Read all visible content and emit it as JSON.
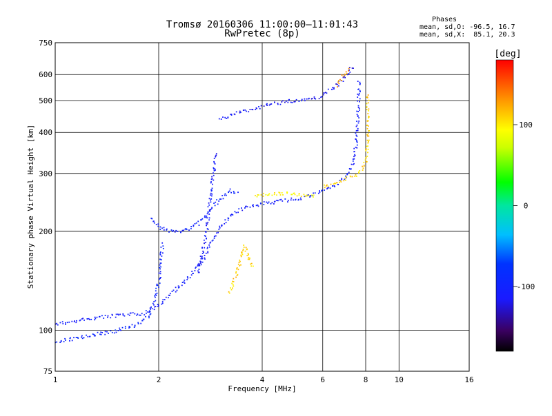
{
  "chart_data": {
    "type": "scatter",
    "title": "Tromsø 20160306 11:00:00–11:01:43",
    "subtitle": "RwPretec (8p)",
    "xlabel": "Frequency [MHz]",
    "ylabel": "Stationary phase Virtual Height [km]",
    "x_scale": "log",
    "y_scale": "log",
    "xlim": [
      1,
      16
    ],
    "ylim": [
      75,
      750
    ],
    "x_ticks": [
      1,
      2,
      4,
      6,
      8,
      10,
      16
    ],
    "x_tick_labels": [
      "1",
      "2",
      "4",
      "6",
      "8",
      "10",
      "16"
    ],
    "y_ticks": [
      75,
      100,
      200,
      300,
      400,
      500,
      600,
      750
    ],
    "y_tick_labels": [
      "75",
      "100",
      "200",
      "300",
      "400",
      "500",
      "600",
      "750"
    ],
    "grid": true,
    "phases_box": {
      "title": "Phases",
      "line1": "mean, sd,O: -96.5, 16.7",
      "line2": "mean, sd,X:  85.1, 20.3"
    },
    "colorbar": {
      "label": "[deg]",
      "range": [
        -180,
        180
      ],
      "ticks": [
        100,
        0,
        -100
      ],
      "tick_labels": [
        "100",
        "0",
        "-100"
      ]
    },
    "traces": [
      {
        "points": [
          [
            1.0,
            105
          ],
          [
            1.1,
            106
          ],
          [
            1.2,
            108
          ],
          [
            1.35,
            110
          ],
          [
            1.5,
            111
          ],
          [
            1.65,
            112
          ],
          [
            1.8,
            113
          ],
          [
            1.9,
            116
          ],
          [
            2.0,
            120
          ],
          [
            2.1,
            125
          ],
          [
            2.2,
            132
          ],
          [
            2.35,
            140
          ],
          [
            2.5,
            150
          ],
          [
            2.65,
            162
          ],
          [
            2.8,
            180
          ],
          [
            2.95,
            200
          ],
          [
            3.1,
            215
          ],
          [
            3.3,
            228
          ],
          [
            3.6,
            238
          ],
          [
            4.0,
            244
          ],
          [
            4.5,
            248
          ],
          [
            5.0,
            252
          ],
          [
            5.5,
            258
          ],
          [
            6.0,
            266
          ],
          [
            6.5,
            278
          ],
          [
            7.0,
            295
          ],
          [
            7.3,
            320
          ],
          [
            7.45,
            360
          ],
          [
            7.55,
            420
          ],
          [
            7.6,
            500
          ],
          [
            7.62,
            580
          ]
        ],
        "phase": -105
      },
      {
        "points": [
          [
            1.0,
            93
          ],
          [
            1.1,
            94
          ],
          [
            1.2,
            96
          ],
          [
            1.35,
            98
          ],
          [
            1.5,
            100
          ],
          [
            1.7,
            104
          ],
          [
            1.85,
            110
          ],
          [
            1.95,
            125
          ],
          [
            2.0,
            145
          ],
          [
            2.02,
            165
          ],
          [
            2.05,
            185
          ]
        ],
        "phase": -95
      },
      {
        "points": [
          [
            1.9,
            220
          ],
          [
            2.0,
            206
          ],
          [
            2.2,
            200
          ],
          [
            2.4,
            203
          ],
          [
            2.6,
            212
          ],
          [
            2.8,
            230
          ],
          [
            3.0,
            252
          ],
          [
            3.2,
            268
          ],
          [
            3.4,
            260
          ]
        ],
        "phase": -100
      },
      {
        "points": [
          [
            2.6,
            150
          ],
          [
            2.68,
            175
          ],
          [
            2.75,
            205
          ],
          [
            2.8,
            240
          ],
          [
            2.85,
            280
          ],
          [
            2.9,
            320
          ],
          [
            2.93,
            350
          ]
        ],
        "phase": -110
      },
      {
        "points": [
          [
            3.0,
            440
          ],
          [
            3.4,
            460
          ],
          [
            3.8,
            475
          ],
          [
            4.3,
            490
          ],
          [
            4.8,
            500
          ],
          [
            5.3,
            505
          ],
          [
            5.8,
            515
          ],
          [
            6.3,
            540
          ],
          [
            6.7,
            570
          ],
          [
            7.0,
            600
          ],
          [
            7.2,
            625
          ],
          [
            7.35,
            640
          ]
        ],
        "phase": -115
      },
      {
        "points": [
          [
            3.8,
            258
          ],
          [
            4.3,
            262
          ],
          [
            4.8,
            262
          ],
          [
            5.3,
            258
          ],
          [
            5.7,
            256
          ]
        ],
        "phase": 95
      },
      {
        "points": [
          [
            6.0,
            275
          ],
          [
            6.5,
            282
          ],
          [
            7.0,
            290
          ],
          [
            7.5,
            300
          ],
          [
            7.8,
            312
          ],
          [
            8.0,
            330
          ],
          [
            8.05,
            365
          ],
          [
            8.1,
            400
          ],
          [
            8.1,
            440
          ],
          [
            8.08,
            480
          ],
          [
            8.05,
            530
          ]
        ],
        "phase": 110
      },
      {
        "points": [
          [
            3.2,
            130
          ],
          [
            3.35,
            148
          ],
          [
            3.45,
            165
          ],
          [
            3.55,
            182
          ],
          [
            3.65,
            165
          ],
          [
            3.75,
            155
          ]
        ],
        "phase": 110
      },
      {
        "points": [
          [
            6.6,
            555
          ],
          [
            6.8,
            590
          ],
          [
            7.0,
            610
          ],
          [
            7.2,
            625
          ]
        ],
        "phase": 130
      }
    ]
  }
}
